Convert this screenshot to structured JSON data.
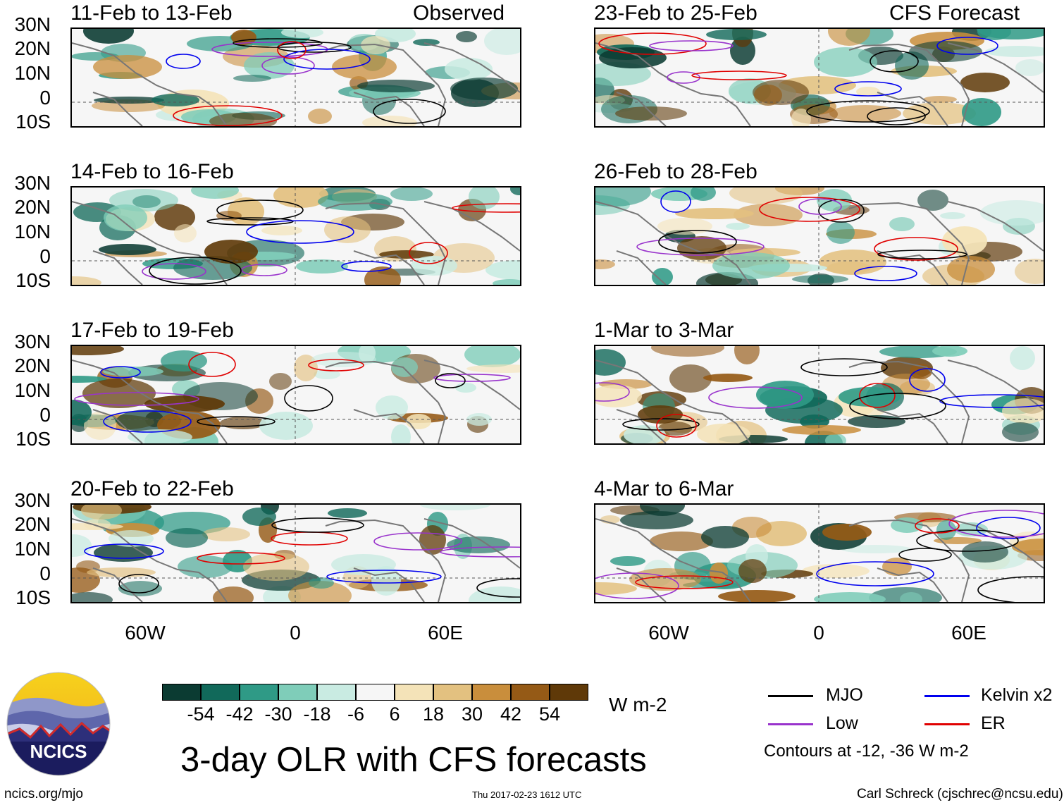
{
  "header": {
    "left_tag": "Observed",
    "right_tag": "CFS Forecast"
  },
  "panels": {
    "observed": [
      {
        "title": "11-Feb to 13-Feb"
      },
      {
        "title": "14-Feb to 16-Feb"
      },
      {
        "title": "17-Feb to 19-Feb"
      },
      {
        "title": "20-Feb to 22-Feb"
      }
    ],
    "forecast": [
      {
        "title": "23-Feb to 25-Feb"
      },
      {
        "title": "26-Feb to 28-Feb"
      },
      {
        "title": "1-Mar to 3-Mar"
      },
      {
        "title": "4-Mar to 6-Mar"
      }
    ]
  },
  "axes": {
    "lat_labels": [
      "30N",
      "20N",
      "10N",
      "0",
      "10S"
    ],
    "lon_labels": [
      "60W",
      "0",
      "60E"
    ]
  },
  "colorbar": {
    "unit": "W m-2",
    "tick_labels": [
      "-54",
      "-42",
      "-30",
      "-18",
      "-6",
      "6",
      "18",
      "30",
      "42",
      "54"
    ],
    "colors": [
      "#0b3b32",
      "#11695a",
      "#2f9a86",
      "#7fcdb9",
      "#c9ebe2",
      "#f6f6f6",
      "#f4e3b8",
      "#e3c180",
      "#c98e3c",
      "#955a16",
      "#5f3908"
    ]
  },
  "legend": {
    "mjo": "MJO",
    "low": "Low",
    "kelvin": "Kelvin x2",
    "er": "ER",
    "contour_note": "Contours at -12, -36 W m-2",
    "colors": {
      "mjo": "#000000",
      "low": "#9933cc",
      "kelvin": "#0000ee",
      "er": "#e00000"
    }
  },
  "title": "3-day OLR with CFS forecasts",
  "logo": {
    "text": "NCICS"
  },
  "footer": {
    "url": "ncics.org/mjo",
    "timestamp": "Thu 2017-02-23 1612 UTC",
    "credit": "Carl Schreck (cjschrec@ncsu.edu)"
  }
}
